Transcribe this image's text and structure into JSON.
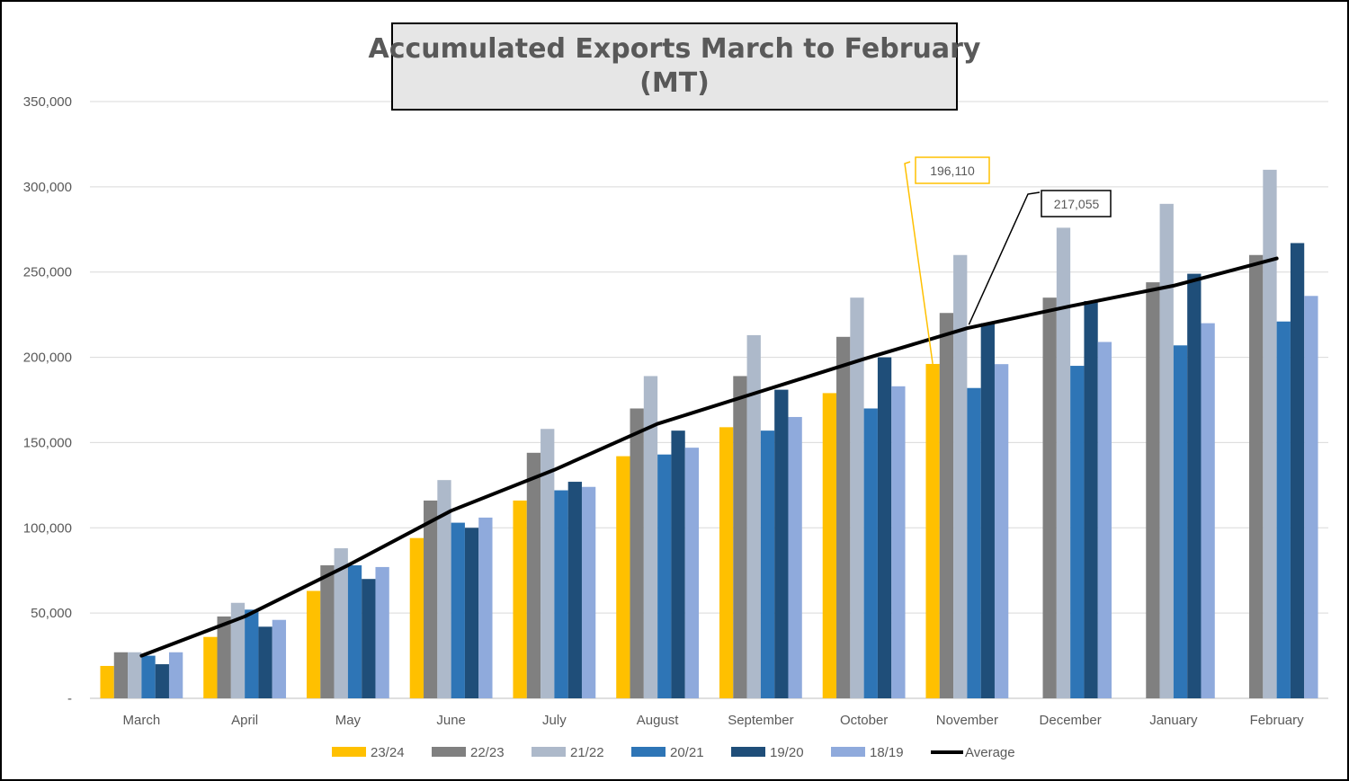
{
  "chart_data": {
    "type": "bar",
    "title": [
      "Accumulated Exports March to February",
      "(MT)"
    ],
    "categories": [
      "March",
      "April",
      "May",
      "June",
      "July",
      "August",
      "September",
      "October",
      "November",
      "December",
      "January",
      "February"
    ],
    "y_ticks": [
      "-",
      "50,000",
      "100,000",
      "150,000",
      "200,000",
      "250,000",
      "300,000",
      "350,000"
    ],
    "ylim": [
      0,
      350000
    ],
    "grid": true,
    "legend_position": "bottom",
    "series": [
      {
        "name": "23/24",
        "color": "#FFC000",
        "values": [
          19000,
          36000,
          63000,
          94000,
          116000,
          142000,
          159000,
          179000,
          196110,
          null,
          null,
          null
        ]
      },
      {
        "name": "22/23",
        "color": "#808080",
        "values": [
          27000,
          48000,
          78000,
          116000,
          144000,
          170000,
          189000,
          212000,
          226000,
          235000,
          244000,
          260000
        ]
      },
      {
        "name": "21/22",
        "color": "#ADB9CA",
        "values": [
          27000,
          56000,
          88000,
          128000,
          158000,
          189000,
          213000,
          235000,
          260000,
          276000,
          290000,
          310000
        ]
      },
      {
        "name": "20/21",
        "color": "#2E75B6",
        "values": [
          25000,
          52000,
          78000,
          103000,
          122000,
          143000,
          157000,
          170000,
          182000,
          195000,
          207000,
          221000
        ]
      },
      {
        "name": "19/20",
        "color": "#1F4E79",
        "values": [
          20000,
          42000,
          70000,
          100000,
          127000,
          157000,
          181000,
          200000,
          220000,
          233000,
          249000,
          267000
        ]
      },
      {
        "name": "18/19",
        "color": "#8FAADC",
        "values": [
          27000,
          46000,
          77000,
          106000,
          124000,
          147000,
          165000,
          183000,
          196000,
          209000,
          220000,
          236000
        ]
      }
    ],
    "line_series": {
      "name": "Average",
      "color": "#000000",
      "values": [
        25000,
        48000,
        78000,
        110000,
        134000,
        161000,
        180000,
        199000,
        217055,
        230000,
        242000,
        258000
      ]
    },
    "annotations": [
      {
        "text": "196,110",
        "series": "23/24",
        "category": "November",
        "color": "#FFC000"
      },
      {
        "text": "217,055",
        "series": "Average",
        "category": "November",
        "color": "#000000"
      }
    ]
  }
}
